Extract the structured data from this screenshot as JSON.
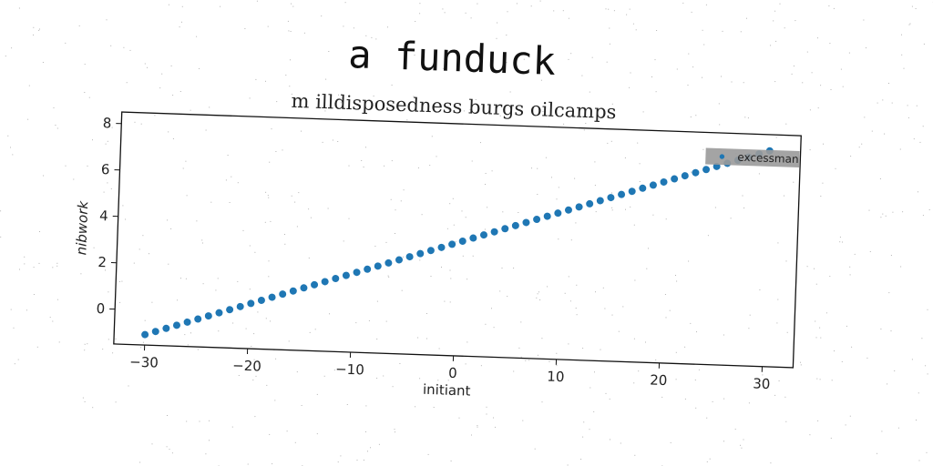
{
  "chart_data": {
    "type": "scatter",
    "title": "a funduck",
    "subtitle": "m illdisposedness burgs oilcamps",
    "xlabel": "initiant",
    "ylabel": "nibwork",
    "xlim": [
      -33,
      33
    ],
    "ylim": [
      -1.5,
      8.5
    ],
    "xticks": [
      -30,
      -20,
      -10,
      0,
      10,
      20,
      30
    ],
    "yticks": [
      0,
      2,
      4,
      6,
      8
    ],
    "xtick_labels": [
      "−30",
      "−20",
      "−10",
      "0",
      "10",
      "20",
      "30"
    ],
    "ytick_labels": [
      "0",
      "2",
      "4",
      "6",
      "8"
    ],
    "grid": false,
    "legend": "top-right",
    "series": [
      {
        "name": "excessman",
        "color": "#1f77b4",
        "x_start": -30,
        "x_end": 30,
        "count": 60,
        "y_start": -1.05,
        "y_end": 7.8
      }
    ]
  }
}
